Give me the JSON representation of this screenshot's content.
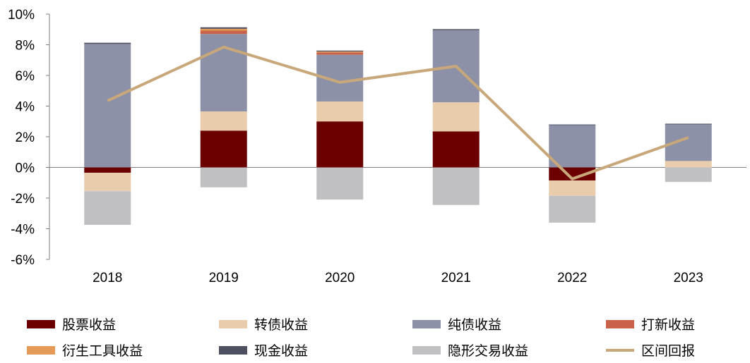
{
  "chart_data": {
    "type": "bar",
    "stacked": true,
    "categories": [
      "2018",
      "2019",
      "2020",
      "2021",
      "2022",
      "2023"
    ],
    "ylim": [
      -6,
      10
    ],
    "yticks": [
      -6,
      -4,
      -2,
      0,
      2,
      4,
      6,
      8,
      10
    ],
    "ytick_labels": [
      "-6%",
      "-4%",
      "-2%",
      "0%",
      "2%",
      "4%",
      "6%",
      "8%",
      "10%"
    ],
    "grid": false,
    "legend_position": "bottom",
    "series": [
      {
        "name": "股票收益",
        "type": "bar",
        "color": "#6b0000",
        "values": [
          -0.35,
          2.4,
          3.0,
          2.35,
          -0.85,
          0.0
        ]
      },
      {
        "name": "转债收益",
        "type": "bar",
        "color": "#e8ccac",
        "values": [
          -1.2,
          1.25,
          1.3,
          1.9,
          -1.0,
          0.42
        ]
      },
      {
        "name": "纯债收益",
        "type": "bar",
        "color": "#8c91a8",
        "values": [
          8.05,
          5.05,
          3.05,
          4.7,
          2.75,
          2.38
        ]
      },
      {
        "name": "打新收益",
        "type": "bar",
        "color": "#c8624a",
        "values": [
          0.0,
          0.22,
          0.15,
          0.0,
          0.0,
          0.0
        ]
      },
      {
        "name": "衍生工具收益",
        "type": "bar",
        "color": "#e69a58",
        "values": [
          0.0,
          0.12,
          0.06,
          0.0,
          0.0,
          0.0
        ]
      },
      {
        "name": "现金收益",
        "type": "bar",
        "color": "#4d5060",
        "values": [
          0.08,
          0.1,
          0.06,
          0.07,
          0.05,
          0.05
        ]
      },
      {
        "name": "隐形交易收益",
        "type": "bar",
        "color": "#c0c0c3",
        "values": [
          -2.2,
          -1.3,
          -2.1,
          -2.45,
          -1.75,
          -0.95
        ]
      },
      {
        "name": "区间回报",
        "type": "line",
        "color": "#c8a77a",
        "values": [
          4.35,
          7.85,
          5.55,
          6.6,
          -0.75,
          1.95
        ]
      }
    ]
  }
}
